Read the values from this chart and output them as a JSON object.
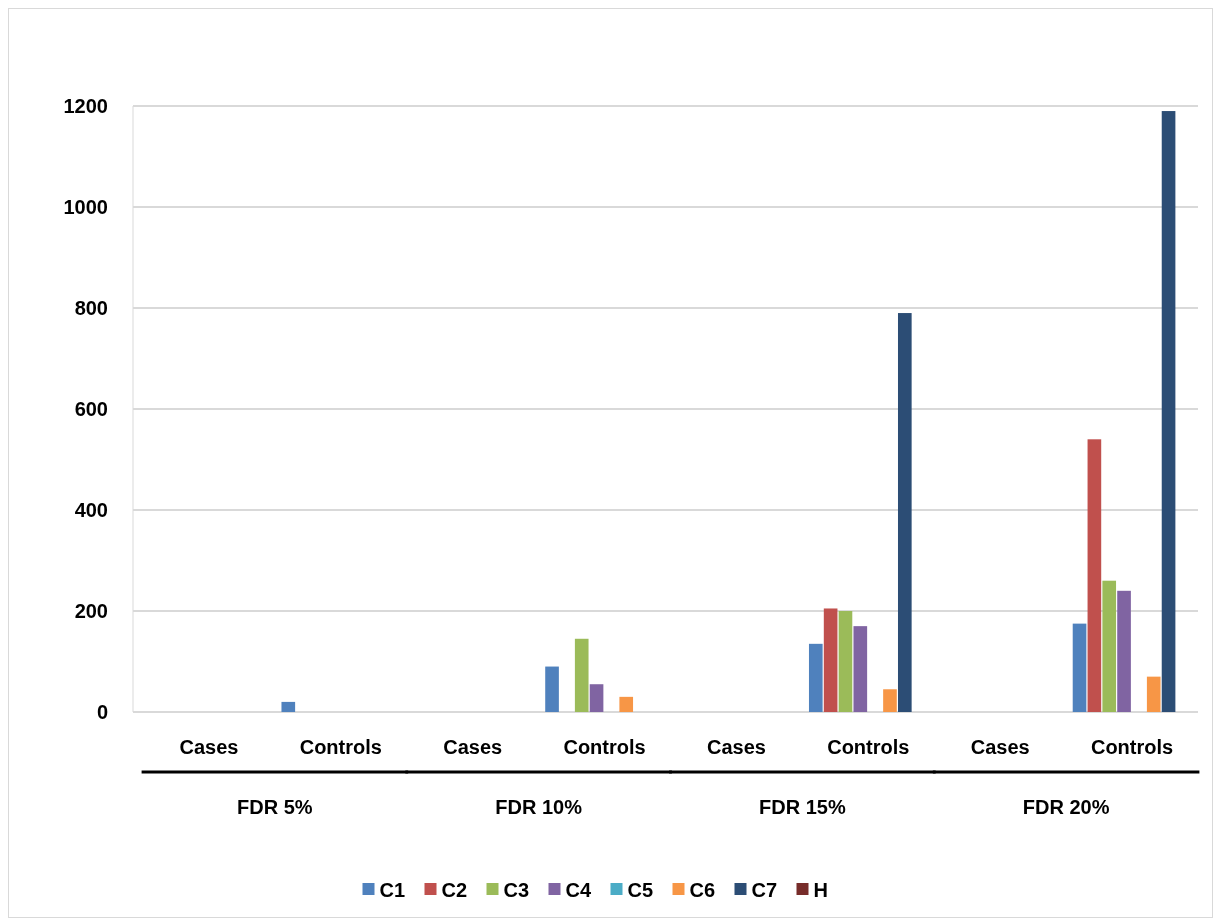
{
  "chart_data": {
    "type": "bar",
    "categories": [
      "Cases",
      "Controls",
      "Cases",
      "Controls",
      "Cases",
      "Controls",
      "Cases",
      "Controls"
    ],
    "annotations": [
      "FDR 5%",
      "FDR 10%",
      "FDR 15%",
      "FDR 20%"
    ],
    "series": [
      {
        "name": "C1",
        "color": "#4f81bd",
        "values": [
          0,
          20,
          0,
          90,
          0,
          135,
          0,
          175
        ]
      },
      {
        "name": "C2",
        "color": "#c0504d",
        "values": [
          0,
          0,
          0,
          0,
          0,
          205,
          0,
          540
        ]
      },
      {
        "name": "C3",
        "color": "#9bbb59",
        "values": [
          0,
          0,
          0,
          145,
          0,
          200,
          0,
          260
        ]
      },
      {
        "name": "C4",
        "color": "#8064a2",
        "values": [
          0,
          0,
          0,
          55,
          0,
          170,
          0,
          240
        ]
      },
      {
        "name": "C5",
        "color": "#4bacc6",
        "values": [
          0,
          0,
          0,
          0,
          0,
          0,
          0,
          0
        ]
      },
      {
        "name": "C6",
        "color": "#f79646",
        "values": [
          0,
          0,
          0,
          30,
          0,
          45,
          0,
          70
        ]
      },
      {
        "name": "C7",
        "color": "#2c4d75",
        "values": [
          0,
          0,
          0,
          0,
          0,
          790,
          0,
          1190
        ]
      },
      {
        "name": "H",
        "color": "#772c2a",
        "values": [
          0,
          0,
          0,
          0,
          0,
          0,
          0,
          0
        ]
      }
    ],
    "ylim": [
      0,
      1200
    ],
    "yticks": [
      0,
      200,
      400,
      600,
      800,
      1000,
      1200
    ],
    "grid": "y",
    "legend": "bottom"
  }
}
